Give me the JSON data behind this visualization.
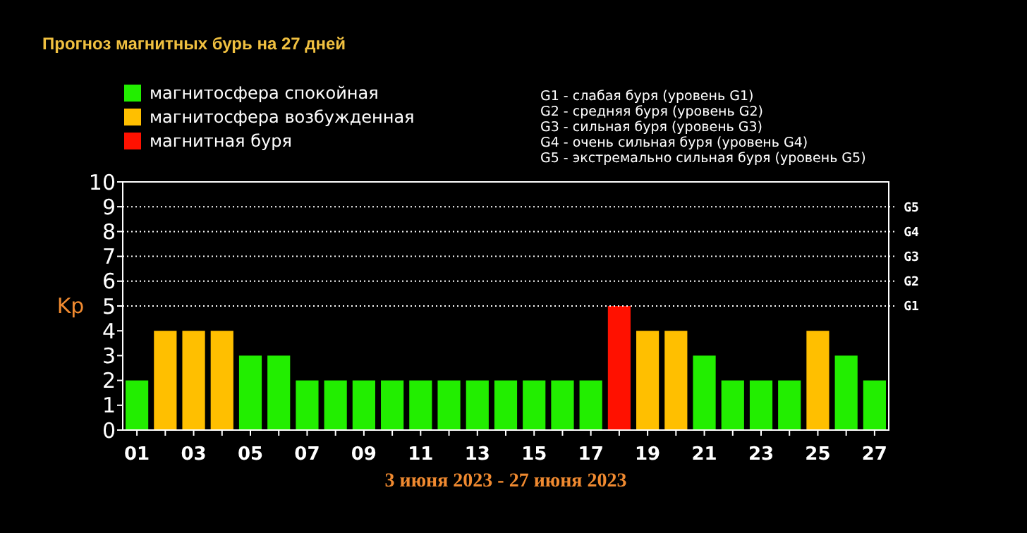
{
  "chart_data": {
    "type": "bar",
    "title": "Прогноз магнитных бурь на 27 дней",
    "xlabel": "3 июня 2023 - 27 июня 2023",
    "ylabel": "Kp",
    "categories": [
      "01",
      null,
      "03",
      null,
      "05",
      null,
      "07",
      null,
      "09",
      null,
      "11",
      null,
      "13",
      null,
      "15",
      null,
      "17",
      null,
      "19",
      null,
      "21",
      null,
      "23",
      null,
      "25",
      null,
      "27"
    ],
    "series": [
      {
        "name": "магнитосфера спокойная",
        "color": "#22ee00",
        "values": [
          2,
          null,
          null,
          null,
          3,
          3,
          2,
          2,
          2,
          2,
          2,
          2,
          2,
          2,
          2,
          2,
          2,
          null,
          null,
          null,
          3,
          2,
          2,
          2,
          null,
          3,
          2
        ]
      },
      {
        "name": "магнитосфера возбужденная",
        "color": "#ffbf00",
        "values": [
          null,
          4,
          4,
          4,
          null,
          null,
          null,
          null,
          null,
          null,
          null,
          null,
          null,
          null,
          null,
          null,
          null,
          null,
          4,
          4,
          null,
          null,
          null,
          null,
          4,
          null,
          null
        ]
      },
      {
        "name": "магнитная буря",
        "color": "#ff1100",
        "values": [
          null,
          null,
          null,
          null,
          null,
          null,
          null,
          null,
          null,
          null,
          null,
          null,
          null,
          null,
          null,
          null,
          null,
          5,
          null,
          null,
          null,
          null,
          null,
          null,
          null,
          null,
          null
        ]
      }
    ],
    "ylim": [
      0,
      10
    ],
    "yticks": [
      0,
      1,
      2,
      3,
      4,
      5,
      6,
      7,
      8,
      9,
      10
    ],
    "ref_lines": [
      {
        "axis": "y",
        "value": 5,
        "label": "G1",
        "color": "#ffffff",
        "line_style": "dotted"
      },
      {
        "axis": "y",
        "value": 6,
        "label": "G2",
        "color": "#ffffff",
        "line_style": "dotted"
      },
      {
        "axis": "y",
        "value": 7,
        "label": "G3",
        "color": "#ffffff",
        "line_style": "dotted"
      },
      {
        "axis": "y",
        "value": 8,
        "label": "G4",
        "color": "#ffffff",
        "line_style": "dotted"
      },
      {
        "axis": "y",
        "value": 9,
        "label": "G5",
        "color": "#ffffff",
        "line_style": "dotted"
      }
    ],
    "legend": "top left",
    "annotations": [
      "G1 - слабая буря (уровень G1)",
      "G2 - средняя буря (уровень G2)",
      "G3 - сильная буря (уровень G3)",
      "G4 - очень сильная буря (уровень G4)",
      "G5 - экстремально сильная буря (уровень G5)"
    ]
  }
}
